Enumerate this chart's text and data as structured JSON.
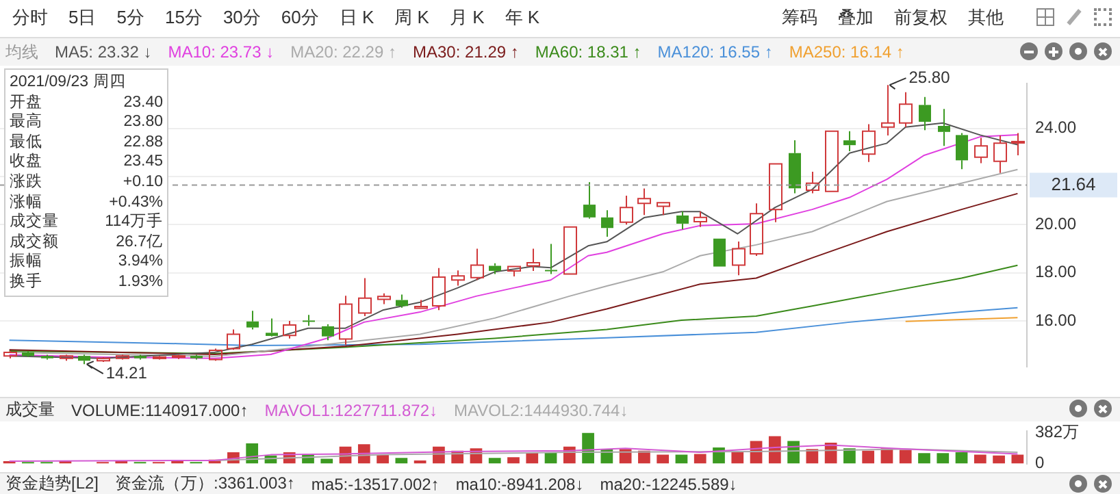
{
  "chart_data": [
    {
      "type": "other",
      "annotations": [
        "分时",
        "5日",
        "5分",
        "15分",
        "30分",
        "60分",
        "日 K",
        "周 K",
        "月 K",
        "年 K"
      ]
    },
    {
      "type": "other",
      "annotations": [
        "筹码",
        "叠加",
        "前复权",
        "其他"
      ]
    },
    {
      "type": "other",
      "annotations": [
        "2021/09/23 周四",
        "开盘 23.40",
        "最高 23.80",
        "最低 22.88",
        "收盘 23.45",
        "涨跌 +0.10",
        "涨幅 +0.43%",
        "成交量 114万手",
        "成交额 26.7亿",
        "振幅 3.94%",
        "换手 1.93%"
      ]
    },
    {
      "type": "candlestick",
      "legend_title": "均线",
      "legend": "top",
      "tick_labels": "y",
      "grid": "y",
      "marker": "none",
      "line_style": "solid",
      "categories": [
        null,
        null,
        null,
        null,
        null,
        null,
        null,
        null,
        null,
        null,
        null,
        null,
        null,
        null,
        null,
        null,
        null,
        null,
        null,
        null,
        null,
        null,
        null,
        null,
        null,
        null,
        null,
        null,
        null,
        null,
        null,
        null,
        null,
        null,
        null,
        null,
        null,
        null,
        null,
        null,
        null,
        null,
        null,
        null,
        null,
        null,
        null,
        null,
        null,
        null,
        null,
        null,
        null,
        null,
        null
      ],
      "ohlc": [
        [
          14.55,
          14.75,
          14.45,
          14.7
        ],
        [
          14.7,
          14.75,
          14.5,
          14.55
        ],
        [
          14.55,
          14.6,
          14.4,
          14.45
        ],
        [
          14.45,
          14.6,
          14.35,
          14.55
        ],
        [
          14.55,
          14.6,
          14.21,
          14.35
        ],
        [
          14.35,
          14.5,
          14.3,
          14.45
        ],
        [
          14.45,
          14.6,
          14.4,
          14.55
        ],
        [
          14.55,
          14.6,
          14.4,
          14.45
        ],
        [
          14.45,
          14.55,
          14.4,
          14.5
        ],
        [
          14.5,
          14.6,
          14.42,
          14.55
        ],
        [
          14.55,
          14.6,
          14.4,
          14.45
        ],
        [
          14.4,
          14.85,
          14.35,
          14.78
        ],
        [
          14.85,
          15.65,
          14.8,
          15.45
        ],
        [
          15.98,
          16.42,
          15.65,
          15.73
        ],
        [
          15.51,
          16.1,
          15.36,
          15.38
        ],
        [
          15.4,
          16.0,
          15.27,
          15.83
        ],
        [
          16.02,
          16.25,
          15.8,
          15.98
        ],
        [
          15.78,
          15.86,
          15.2,
          15.36
        ],
        [
          15.25,
          17.05,
          15.0,
          16.7
        ],
        [
          16.33,
          17.78,
          16.2,
          16.95
        ],
        [
          16.9,
          17.15,
          16.7,
          17.02
        ],
        [
          16.87,
          17.1,
          16.55,
          16.62
        ],
        [
          16.53,
          16.87,
          16.53,
          16.6
        ],
        [
          16.63,
          18.2,
          16.45,
          17.82
        ],
        [
          17.7,
          18.1,
          17.47,
          17.87
        ],
        [
          17.8,
          19.0,
          17.7,
          18.32
        ],
        [
          18.29,
          18.4,
          17.95,
          18.08
        ],
        [
          18.08,
          18.26,
          17.85,
          18.26
        ],
        [
          18.29,
          19.0,
          18.08,
          18.42
        ],
        [
          18.12,
          19.2,
          17.95,
          18.08
        ],
        [
          17.95,
          19.9,
          17.95,
          19.9
        ],
        [
          20.83,
          21.76,
          20.25,
          20.3
        ],
        [
          20.3,
          20.6,
          19.5,
          19.86
        ],
        [
          20.1,
          21.2,
          20.0,
          20.71
        ],
        [
          20.88,
          21.5,
          20.4,
          21.08
        ],
        [
          20.76,
          20.91,
          20.4,
          20.91
        ],
        [
          20.38,
          20.55,
          19.8,
          20.04
        ],
        [
          20.12,
          20.55,
          19.9,
          20.3
        ],
        [
          19.42,
          19.42,
          18.26,
          18.26
        ],
        [
          18.32,
          19.3,
          17.9,
          19.0
        ],
        [
          18.79,
          20.88,
          18.7,
          20.46
        ],
        [
          20.63,
          22.52,
          20.1,
          22.52
        ],
        [
          22.97,
          23.5,
          21.3,
          21.51
        ],
        [
          21.43,
          22.2,
          21.3,
          21.72
        ],
        [
          21.38,
          23.88,
          21.38,
          23.88
        ],
        [
          23.5,
          23.88,
          23.05,
          23.3
        ],
        [
          22.93,
          24.17,
          22.6,
          23.88
        ],
        [
          24.05,
          25.8,
          23.7,
          24.22
        ],
        [
          24.22,
          25.5,
          24.05,
          25.0
        ],
        [
          24.97,
          25.3,
          23.92,
          24.27
        ],
        [
          24.1,
          24.8,
          23.27,
          23.85
        ],
        [
          23.72,
          23.8,
          22.3,
          22.67
        ],
        [
          22.8,
          23.6,
          22.55,
          23.27
        ],
        [
          22.63,
          23.7,
          22.15,
          23.38
        ],
        [
          23.4,
          23.8,
          22.88,
          23.45
        ]
      ],
      "colors": [
        "#d0393b",
        "#3c9a22",
        "#3c9a22",
        "#d0393b",
        "#3c9a22",
        "#d0393b",
        "#d0393b",
        "#3c9a22",
        "#d0393b",
        "#d0393b",
        "#3c9a22",
        "#d0393b",
        "#d0393b",
        "#3c9a22",
        "#3c9a22",
        "#d0393b",
        "#3c9a22",
        "#3c9a22",
        "#d0393b",
        "#d0393b",
        "#d0393b",
        "#3c9a22",
        "#d0393b",
        "#d0393b",
        "#d0393b",
        "#d0393b",
        "#3c9a22",
        "#d0393b",
        "#d0393b",
        "#3c9a22",
        "#d0393b",
        "#3c9a22",
        "#3c9a22",
        "#d0393b",
        "#d0393b",
        "#d0393b",
        "#3c9a22",
        "#d0393b",
        "#3c9a22",
        "#d0393b",
        "#d0393b",
        "#d0393b",
        "#3c9a22",
        "#d0393b",
        "#d0393b",
        "#3c9a22",
        "#d0393b",
        "#d0393b",
        "#d0393b",
        "#3c9a22",
        "#3c9a22",
        "#3c9a22",
        "#d0393b",
        "#d0393b",
        "#d0393b"
      ],
      "series": [
        {
          "type": "line",
          "name": "MA5: 23.32 ↓",
          "color": "#555555",
          "values": [
            14.55,
            null,
            null,
            null,
            null,
            14.45,
            null,
            null,
            null,
            null,
            null,
            14.7,
            null,
            15.03,
            null,
            null,
            15.7,
            null,
            15.7,
            null,
            16.45,
            null,
            16.78,
            null,
            17.37,
            null,
            18.04,
            null,
            18.26,
            18.21,
            null,
            19.12,
            19.29,
            null,
            20.29,
            null,
            20.54,
            20.54,
            null,
            19.62,
            null,
            20.71,
            null,
            21.46,
            null,
            22.97,
            null,
            23.38,
            24.05,
            null,
            24.22,
            null,
            23.72,
            null,
            23.32
          ]
        },
        {
          "type": "line",
          "name": "MA10: 23.73 ↓",
          "color": "#e040e0",
          "values": [
            14.6,
            null,
            null,
            null,
            null,
            14.5,
            null,
            null,
            null,
            null,
            null,
            14.45,
            null,
            null,
            14.61,
            null,
            null,
            15.28,
            null,
            15.95,
            null,
            null,
            16.37,
            null,
            null,
            17.03,
            null,
            17.37,
            null,
            17.7,
            null,
            18.71,
            18.85,
            null,
            null,
            19.62,
            null,
            19.96,
            null,
            null,
            20.04,
            null,
            null,
            20.63,
            null,
            21.13,
            null,
            21.88,
            null,
            22.88,
            null,
            null,
            23.65,
            null,
            23.73
          ]
        },
        {
          "type": "line",
          "name": "MA20: 22.29 ↑",
          "color": "#aaaaaa",
          "values": [
            14.7,
            null,
            null,
            null,
            null,
            null,
            null,
            null,
            null,
            null,
            null,
            14.53,
            null,
            null,
            null,
            null,
            null,
            15.03,
            null,
            null,
            null,
            null,
            15.45,
            null,
            null,
            null,
            16.12,
            null,
            null,
            null,
            17.03,
            null,
            17.45,
            null,
            null,
            18.04,
            null,
            18.71,
            null,
            null,
            19.16,
            null,
            null,
            19.71,
            null,
            null,
            null,
            20.96,
            null,
            null,
            null,
            21.72,
            null,
            null,
            22.29
          ]
        },
        {
          "type": "line",
          "name": "MA30: 21.29 ↑",
          "color": "#7a1a1a",
          "values": [
            14.8,
            null,
            null,
            null,
            null,
            null,
            null,
            null,
            null,
            null,
            null,
            14.61,
            null,
            null,
            null,
            null,
            null,
            null,
            14.95,
            null,
            null,
            null,
            null,
            null,
            15.45,
            null,
            null,
            null,
            null,
            15.95,
            null,
            null,
            16.5,
            null,
            null,
            null,
            null,
            17.53,
            null,
            null,
            17.78,
            null,
            null,
            18.62,
            null,
            null,
            null,
            19.71,
            null,
            null,
            null,
            20.63,
            null,
            null,
            21.29
          ]
        },
        {
          "type": "line",
          "name": "MA60: 18.31 ↑",
          "color": "#3a8a1a",
          "values": [
            14.75,
            null,
            null,
            null,
            null,
            null,
            null,
            null,
            null,
            null,
            null,
            14.65,
            null,
            null,
            null,
            null,
            null,
            null,
            14.91,
            null,
            null,
            null,
            null,
            null,
            null,
            null,
            15.28,
            null,
            null,
            null,
            null,
            null,
            15.65,
            null,
            null,
            null,
            16.03,
            null,
            null,
            null,
            16.2,
            null,
            null,
            16.62,
            null,
            null,
            null,
            17.2,
            null,
            null,
            null,
            17.78,
            null,
            null,
            18.31
          ]
        },
        {
          "type": "line",
          "name": "MA120: 16.55 ↑",
          "color": "#4a90d9",
          "values": [
            15.2,
            null,
            null,
            null,
            null,
            null,
            null,
            null,
            null,
            15.06,
            null,
            null,
            null,
            14.98,
            null,
            null,
            null,
            null,
            null,
            null,
            null,
            null,
            15.03,
            null,
            null,
            null,
            null,
            null,
            null,
            null,
            null,
            null,
            15.3,
            null,
            null,
            null,
            null,
            null,
            null,
            null,
            15.53,
            null,
            null,
            null,
            null,
            15.95,
            null,
            null,
            null,
            null,
            null,
            16.37,
            null,
            null,
            16.55
          ]
        },
        {
          "type": "line",
          "name": "MA250: 16.14 ↑",
          "color": "#f0a030",
          "values": [
            null,
            null,
            null,
            null,
            null,
            null,
            null,
            null,
            null,
            null,
            null,
            null,
            null,
            null,
            null,
            null,
            null,
            null,
            null,
            null,
            null,
            null,
            null,
            null,
            null,
            null,
            null,
            null,
            null,
            null,
            null,
            null,
            null,
            null,
            null,
            null,
            null,
            null,
            null,
            null,
            null,
            null,
            null,
            null,
            null,
            null,
            null,
            null,
            15.98,
            null,
            null,
            null,
            null,
            null,
            16.14
          ]
        }
      ],
      "ylim": [
        14.1,
        25.85
      ],
      "yticks": [
        {
          "value": 16,
          "label": "16.00"
        },
        {
          "value": 18,
          "label": "18.00"
        },
        {
          "value": 20,
          "label": "20.00"
        },
        {
          "value": 22,
          "label": null
        },
        {
          "value": 24,
          "label": "24.00"
        }
      ],
      "ref_lines": [
        {
          "axis": "y",
          "value": 21.64,
          "label": "21.64",
          "line_style": "dashed"
        }
      ],
      "annotations": [
        "25.80",
        "14.21"
      ]
    },
    {
      "type": "bar",
      "title": "成交量",
      "legend": "top",
      "tick_labels": "y",
      "grid": false,
      "marker": "none",
      "categories": [
        null,
        null,
        null,
        null,
        null,
        null,
        null,
        null,
        null,
        null,
        null,
        null,
        null,
        null,
        null,
        null,
        null,
        null,
        null,
        null,
        null,
        null,
        null,
        null,
        null,
        null,
        null,
        null,
        null,
        null,
        null,
        null,
        null,
        null,
        null,
        null,
        null,
        null,
        null,
        null,
        null,
        null,
        null,
        null,
        null,
        null,
        null,
        null,
        null,
        null,
        null,
        null,
        null,
        null,
        null
      ],
      "series": [
        {
          "type": "bar",
          "name": "VOLUME:1140917.000↑",
          "colors": [
            "#d0393b",
            "#3c9a22",
            "#3c9a22",
            "#d0393b",
            "#3c9a22",
            "#d0393b",
            "#d0393b",
            "#3c9a22",
            "#d0393b",
            "#d0393b",
            "#3c9a22",
            "#d0393b",
            "#d0393b",
            "#3c9a22",
            "#3c9a22",
            "#d0393b",
            "#3c9a22",
            "#3c9a22",
            "#d0393b",
            "#d0393b",
            "#d0393b",
            "#3c9a22",
            "#d0393b",
            "#d0393b",
            "#d0393b",
            "#d0393b",
            "#3c9a22",
            "#d0393b",
            "#d0393b",
            "#3c9a22",
            "#d0393b",
            "#3c9a22",
            "#3c9a22",
            "#d0393b",
            "#d0393b",
            "#d0393b",
            "#3c9a22",
            "#d0393b",
            "#3c9a22",
            "#d0393b",
            "#d0393b",
            "#d0393b",
            "#3c9a22",
            "#d0393b",
            "#d0393b",
            "#3c9a22",
            "#d0393b",
            "#d0393b",
            "#d0393b",
            "#3c9a22",
            "#3c9a22",
            "#3c9a22",
            "#d0393b",
            "#d0393b",
            "#d0393b"
          ],
          "values": [
            30,
            20,
            20,
            30,
            null,
            20,
            30,
            20,
            20,
            30,
            20,
            50,
            140,
            250,
            100,
            140,
            120,
            60,
            210,
            240,
            110,
            70,
            40,
            210,
            160,
            190,
            70,
            80,
            140,
            140,
            210,
            380,
            180,
            180,
            160,
            110,
            110,
            120,
            200,
            150,
            280,
            340,
            280,
            180,
            260,
            190,
            160,
            190,
            170,
            130,
            130,
            140,
            110,
            100,
            110
          ]
        },
        {
          "type": "line",
          "name": "MAVOL1:1227711.872↓",
          "color": "#d35ad3",
          "values": [
            30,
            null,
            null,
            null,
            null,
            null,
            null,
            null,
            null,
            null,
            null,
            40,
            null,
            null,
            110,
            null,
            null,
            null,
            120,
            null,
            null,
            null,
            null,
            null,
            150,
            null,
            null,
            null,
            null,
            null,
            160,
            null,
            null,
            190,
            null,
            null,
            null,
            140,
            null,
            null,
            null,
            200,
            null,
            null,
            230,
            null,
            null,
            null,
            180,
            null,
            null,
            null,
            null,
            null,
            120
          ]
        },
        {
          "type": "line",
          "name": "MAVOL2:1444930.744↓",
          "color": "#aaaaaa",
          "values": [
            null,
            null,
            null,
            null,
            null,
            null,
            null,
            null,
            null,
            null,
            null,
            40,
            null,
            null,
            null,
            null,
            null,
            null,
            null,
            null,
            110,
            null,
            null,
            null,
            null,
            null,
            null,
            null,
            null,
            null,
            140,
            null,
            null,
            null,
            null,
            null,
            null,
            null,
            null,
            null,
            150,
            null,
            null,
            null,
            null,
            null,
            null,
            null,
            180,
            null,
            null,
            null,
            null,
            null,
            140
          ]
        }
      ],
      "ylim": [
        0,
        400
      ],
      "yticks": [
        {
          "value": 0,
          "label": "0"
        },
        {
          "value": 382,
          "label": "382万"
        }
      ],
      "annotations": [
        "资金趋势[L2]",
        "资金流（万）:3361.003↑",
        "ma5:-13517.002↑",
        "ma10:-8941.208↓",
        "ma20:-12245.589↓"
      ]
    }
  ]
}
